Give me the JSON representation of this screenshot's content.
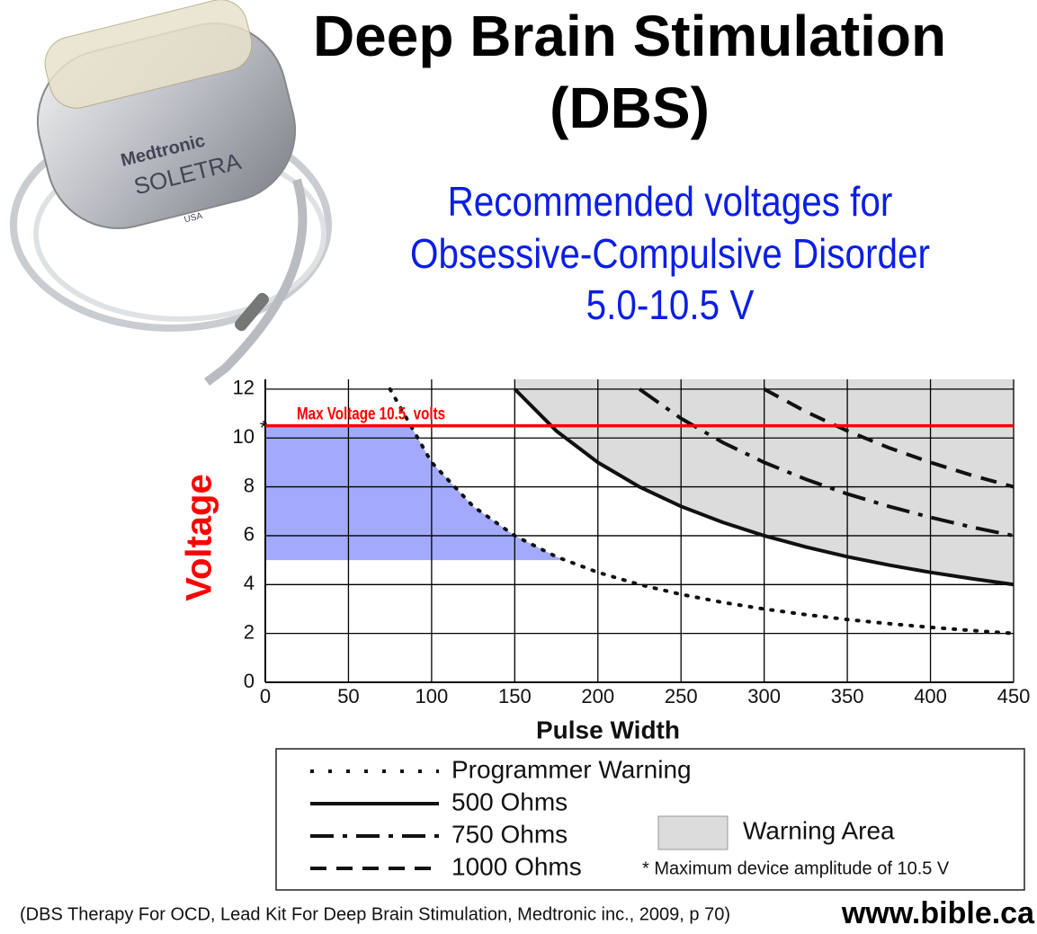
{
  "chart_data": {
    "type": "line",
    "title": [
      "Deep Brain Stimulation",
      "(DBS)"
    ],
    "subtitle": [
      "Recommended voltages for",
      "Obsessive-Compulsive Disorder",
      "5.0-10.5 V"
    ],
    "x_label": "Pulse Width",
    "y_label": "Voltage",
    "x": [
      75,
      100,
      125,
      150,
      175,
      200,
      225,
      250,
      275,
      300,
      325,
      350,
      375,
      400,
      425,
      450
    ],
    "series": [
      {
        "name": "Programmer Warning",
        "color": "#111111",
        "dash": "2,10",
        "values": [
          12,
          9,
          7.2,
          6,
          5.14,
          4.5,
          4,
          3.6,
          3.27,
          3,
          2.77,
          2.57,
          2.4,
          2.25,
          2.12,
          2
        ]
      },
      {
        "name": "500 Ohms",
        "color": "#111111",
        "dash": "none",
        "values": [
          null,
          null,
          null,
          12,
          10.29,
          9,
          8,
          7.2,
          6.55,
          6,
          5.54,
          5.14,
          4.8,
          4.5,
          4.24,
          4
        ]
      },
      {
        "name": "750 Ohms",
        "color": "#111111",
        "dash": "26,10,5,10",
        "values": [
          null,
          null,
          null,
          null,
          null,
          null,
          12,
          10.8,
          9.82,
          9,
          8.31,
          7.71,
          7.2,
          6.75,
          6.35,
          6
        ]
      },
      {
        "name": "1000 Ohms",
        "color": "#111111",
        "dash": "18,11",
        "values": [
          null,
          null,
          null,
          null,
          null,
          null,
          null,
          null,
          null,
          12,
          11.08,
          10.29,
          9.6,
          9,
          8.47,
          8
        ]
      }
    ],
    "xlim": [
      0,
      450
    ],
    "ylim": [
      0,
      12.4
    ],
    "xticks": [
      0,
      50,
      100,
      150,
      200,
      250,
      300,
      350,
      400,
      450
    ],
    "yticks": [
      0,
      2,
      4,
      6,
      8,
      10,
      12
    ],
    "grid": true,
    "warning_area": {
      "label": "Warning Area",
      "color": "#dcdcdc"
    },
    "recommended": {
      "ymin": 5,
      "ymax": 10.5,
      "color": "#a3aafc"
    },
    "max_voltage": {
      "value": 10.5,
      "label": "Max Voltage 10.5  volts",
      "color": "#ff0000",
      "marker": "*"
    },
    "footnote": "* Maximum device amplitude of 10.5 V",
    "source": "(DBS Therapy For OCD, Lead Kit For Deep Brain Stimulation, Medtronic inc., 2009, p 70)",
    "website": "www.bible.ca",
    "device": {
      "brand": "Medtronic",
      "model": "SOLETRA",
      "origin": "USA"
    }
  }
}
